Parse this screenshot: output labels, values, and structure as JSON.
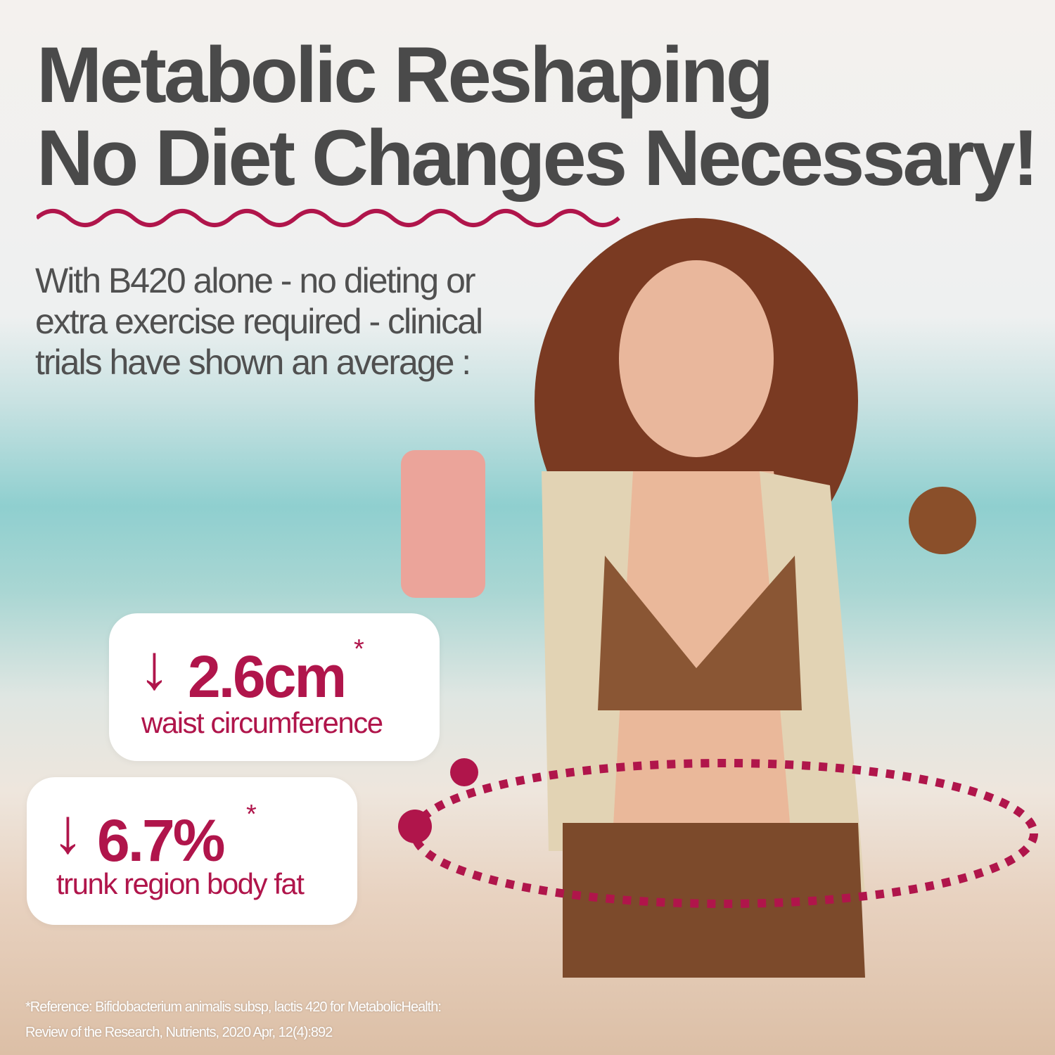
{
  "headline": {
    "line1": "Metabolic Reshaping",
    "line2": "No Diet Changes Necessary!"
  },
  "subheadline": {
    "line1": "With B420 alone - no dieting or",
    "line2": "extra exercise required - clinical",
    "line3": "trials have shown an average :"
  },
  "stats": [
    {
      "icon": "arrow-down-icon",
      "value": "2.6cm",
      "marker": "*",
      "label": "waist circumference"
    },
    {
      "icon": "arrow-down-icon",
      "value": "6.7%",
      "marker": "*",
      "label": "trunk region body fat"
    }
  ],
  "reference": {
    "line1": "*Reference: Bifidobacterium animalis subsp, lactis 420 for MetabolicHealth:",
    "line2": "Review of the Research, Nutrients, 2020 Apr, 12(4):892"
  },
  "colors": {
    "accent": "#b0154b",
    "headline": "#4a4a4a",
    "subheadline": "#505050"
  }
}
